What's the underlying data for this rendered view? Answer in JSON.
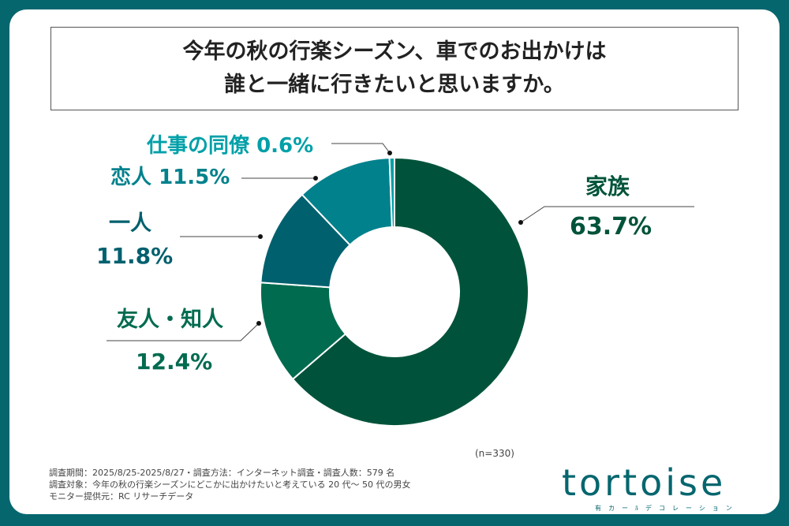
{
  "chart_data": {
    "type": "pie",
    "title": "今年の秋の行楽シーズン、車でのお出かけは誰と一緒に行きたいと思いますか。",
    "title_lines": [
      "今年の秋の行楽シーズン、車でのお出かけは",
      "誰と一緒に行きたいと思いますか。"
    ],
    "slices": [
      {
        "label": "家族",
        "value": 63.7,
        "text": "63.7%",
        "color": "#00533a"
      },
      {
        "label": "友人・知人",
        "value": 12.4,
        "text": "12.4%",
        "color": "#006b4f"
      },
      {
        "label": "一人",
        "value": 11.8,
        "text": "11.8%",
        "color": "#00606e"
      },
      {
        "label": "恋人",
        "value": 11.5,
        "text": "11.5%",
        "color": "#00818c"
      },
      {
        "label": "仕事の同僚",
        "value": 0.6,
        "text": "0.6%",
        "color": "#00a0a8"
      }
    ],
    "n_label": "(n=330)"
  },
  "notes": [
    "調査期間：2025/8/25-2025/8/27・調査方法：インターネット調査・調査人数：579 名",
    "調査対象：今年の秋の行楽シーズンにどこかに出かけたいと考えている 20 代～ 50 代の男女",
    "モニター提供元：RC リサーチデータ"
  ],
  "logo": {
    "word": "tortoise",
    "sub": "有カーﾙデコレーション"
  }
}
